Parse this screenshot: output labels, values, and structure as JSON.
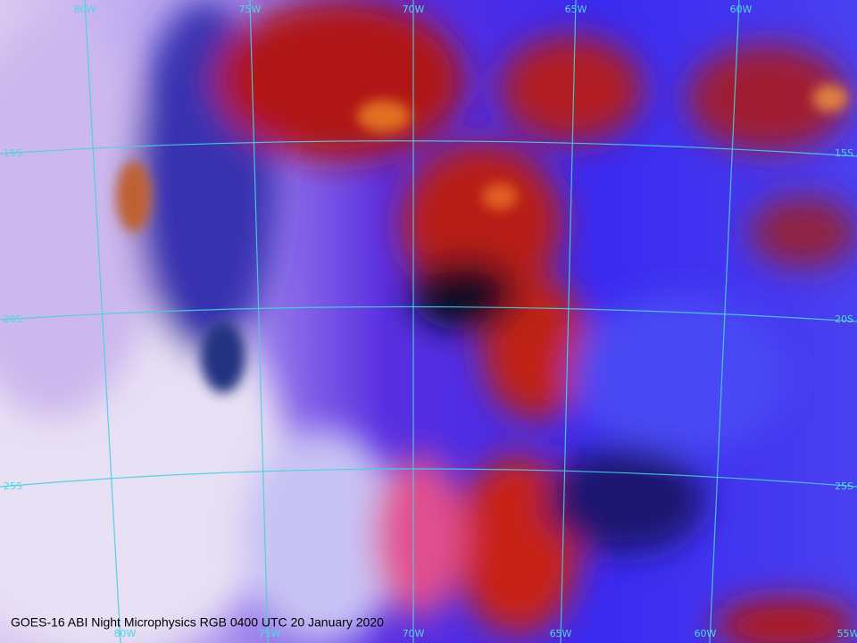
{
  "title": "GOES-16 ABI Night Microphysics RGB 0400 UTC 20 January 2020",
  "grid": {
    "top_labels": [
      "80W",
      "75W",
      "70W",
      "65W",
      "60W"
    ],
    "bottom_labels": [
      "80W",
      "75W",
      "70W",
      "65W",
      "60W",
      "55W"
    ],
    "left_labels": [
      "15S",
      "20S",
      "25S"
    ],
    "right_labels": [
      "15S",
      "20S",
      "25S"
    ]
  }
}
